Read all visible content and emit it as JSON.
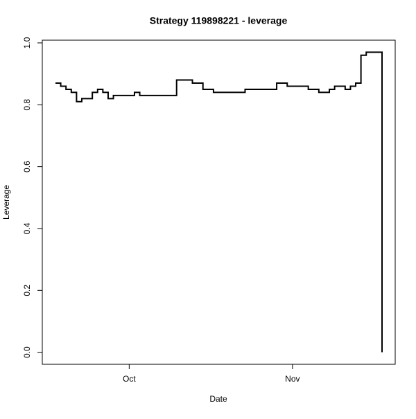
{
  "chart_data": {
    "type": "step",
    "title": "Strategy 119898221 - leverage",
    "x_label": "Date",
    "y_label": "Leverage",
    "x": [
      0,
      1,
      2,
      3,
      4,
      5,
      7,
      8,
      9,
      10,
      11,
      15,
      16,
      23,
      26,
      28,
      30,
      36,
      42,
      44,
      48,
      50,
      52,
      53,
      55,
      56,
      57,
      58,
      59,
      62
    ],
    "series": [
      {
        "color": "#000000",
        "values": [
          0.87,
          0.86,
          0.85,
          0.84,
          0.81,
          0.82,
          0.84,
          0.85,
          0.84,
          0.82,
          0.83,
          0.84,
          0.83,
          0.88,
          0.87,
          0.85,
          0.84,
          0.85,
          0.87,
          0.86,
          0.85,
          0.84,
          0.85,
          0.86,
          0.85,
          0.86,
          0.87,
          0.96,
          0.97,
          0.0
        ]
      }
    ],
    "xlim": [
      -2.5,
      64.5
    ],
    "xticks": [
      {
        "value": 14,
        "label": "Oct"
      },
      {
        "value": 45,
        "label": "Nov"
      }
    ],
    "ylim": [
      -0.0388,
      1.0088
    ],
    "yticks": [
      {
        "value": 0,
        "label": "0.0"
      },
      {
        "value": 0.2,
        "label": "0.2"
      },
      {
        "value": 0.4,
        "label": "0.4"
      },
      {
        "value": 0.6,
        "label": "0.6"
      },
      {
        "value": 0.8,
        "label": "0.8"
      },
      {
        "value": 1,
        "label": "1.0"
      }
    ]
  }
}
